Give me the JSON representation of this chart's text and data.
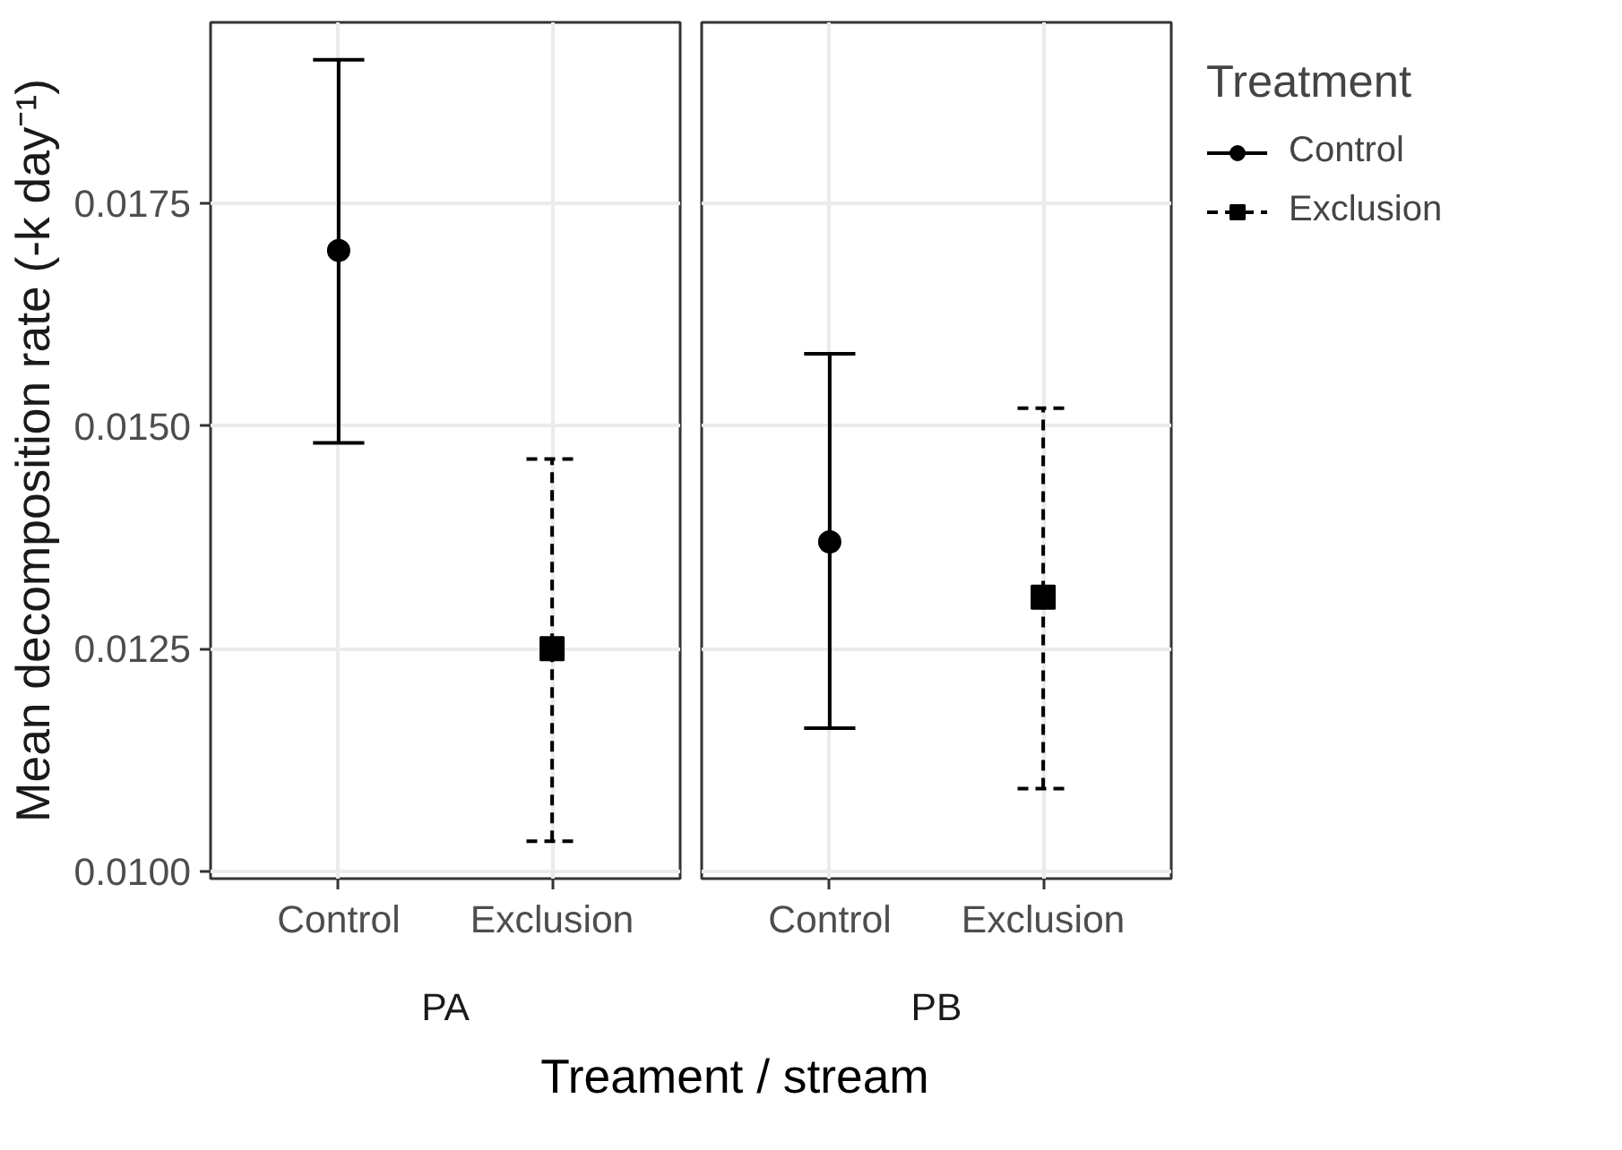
{
  "chart_data": [
    {
      "type": "scatter",
      "xlabel": "PA",
      "ylabel": "Mean decomposition rate (-k day⁻¹)",
      "annotations": [
        "Treament / stream"
      ],
      "categories": [
        "Control",
        "Exclusion"
      ],
      "ylim": [
        0.00992,
        0.01953
      ],
      "yticks": [
        {
          "value": 0.01,
          "label": "0.0100"
        },
        {
          "value": 0.0125,
          "label": "0.0125"
        },
        {
          "value": 0.015,
          "label": "0.0150"
        },
        {
          "value": 0.0175,
          "label": "0.0175"
        }
      ],
      "grid": true,
      "series": [
        {
          "color": "#000000",
          "marker": "circle",
          "line_style": "solid",
          "values": [
            0.01697,
            null
          ],
          "errors": [
            [
              0.01481,
              0.01911
            ],
            null
          ]
        },
        {
          "color": "#000000",
          "marker": "square",
          "line_style": "dashed",
          "values": [
            null,
            0.0125
          ],
          "errors": [
            null,
            [
              0.01034,
              0.01463
            ]
          ]
        }
      ]
    },
    {
      "type": "scatter",
      "xlabel": "PB",
      "legend_title": "Treatment",
      "categories": [
        "Control",
        "Exclusion"
      ],
      "ylim": [
        0.00992,
        0.01953
      ],
      "yticks": [
        0.01,
        0.0125,
        0.015,
        0.0175
      ],
      "grid": true,
      "legend": "right",
      "tick_labels": "x",
      "series": [
        {
          "name": "Control",
          "color": "#000000",
          "marker": "circle",
          "line_style": "solid",
          "values": [
            0.0137,
            null
          ],
          "errors": [
            [
              0.01161,
              0.01581
            ],
            null
          ]
        },
        {
          "name": "Exclusion",
          "color": "#000000",
          "marker": "square",
          "line_style": "dashed",
          "values": [
            null,
            0.01308
          ],
          "errors": [
            null,
            [
              0.01093,
              0.0152
            ]
          ]
        }
      ]
    }
  ]
}
